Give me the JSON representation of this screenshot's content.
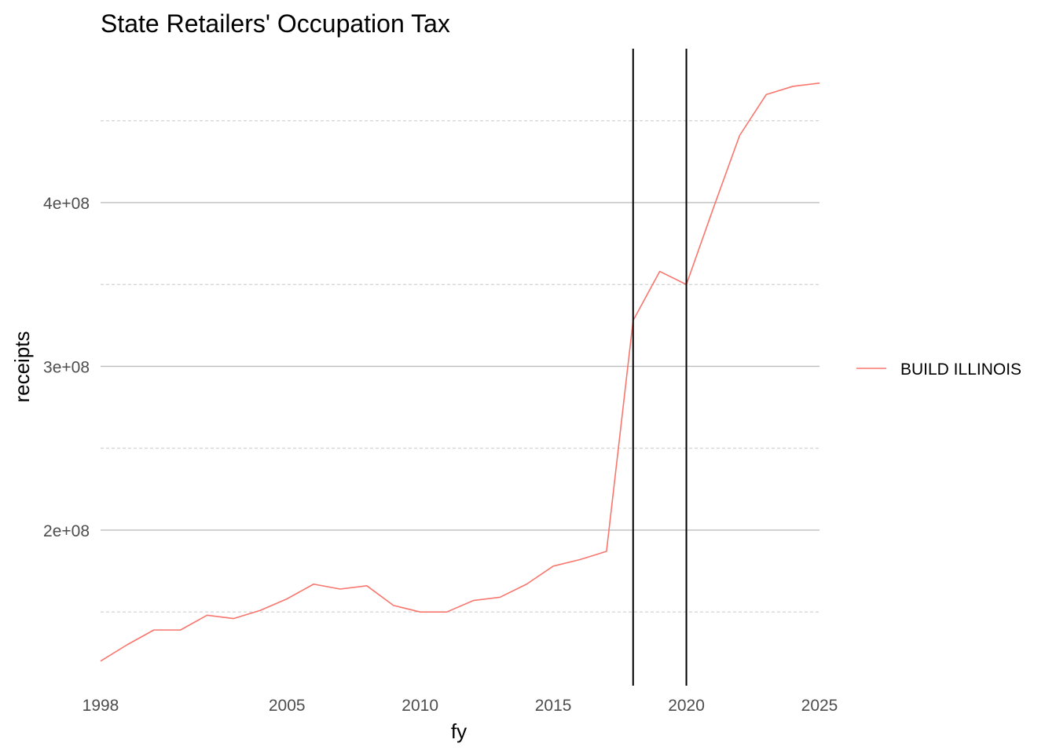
{
  "chart_data": {
    "type": "line",
    "title": "State Retailers' Occupation Tax",
    "xlabel": "fy",
    "ylabel": "receipts",
    "xlim": [
      1998,
      2025
    ],
    "ylim": [
      105000000,
      494000000
    ],
    "x_ticks": [
      1998,
      2005,
      2010,
      2015,
      2020,
      2025
    ],
    "x_tick_labels": [
      "1998",
      "2005",
      "2010",
      "2015",
      "2020",
      "2025"
    ],
    "y_major_ticks": [
      200000000,
      300000000,
      400000000
    ],
    "y_tick_labels": [
      "2e+08",
      "3e+08",
      "4e+08"
    ],
    "y_minor_ticks": [
      150000000,
      250000000,
      350000000,
      450000000
    ],
    "grid": true,
    "legend_position": "right",
    "vlines": [
      2018,
      2020
    ],
    "series": [
      {
        "name": "BUILD ILLINOIS",
        "color": "#F8766D",
        "x": [
          1998,
          1999,
          2000,
          2001,
          2002,
          2003,
          2004,
          2005,
          2006,
          2007,
          2008,
          2009,
          2010,
          2011,
          2012,
          2013,
          2014,
          2015,
          2016,
          2017,
          2018,
          2019,
          2020,
          2021,
          2022,
          2023,
          2024,
          2025
        ],
        "y": [
          120000000,
          130000000,
          139000000,
          139000000,
          148000000,
          146000000,
          151000000,
          158000000,
          167000000,
          164000000,
          166000000,
          154000000,
          150000000,
          150000000,
          157000000,
          159000000,
          167000000,
          178000000,
          182000000,
          187000000,
          328000000,
          358000000,
          350000000,
          396000000,
          441000000,
          466000000,
          471000000,
          473000000
        ]
      }
    ]
  }
}
